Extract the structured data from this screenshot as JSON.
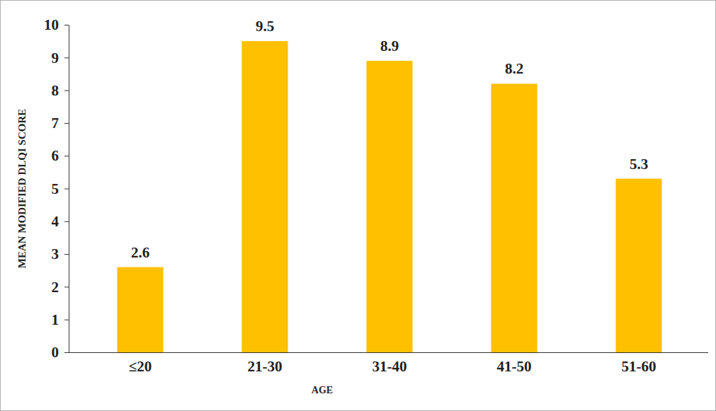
{
  "chart_data": {
    "type": "bar",
    "x_label": "AGE",
    "y_label": "MEAN MODIFIED DLQI SCORE",
    "categories": [
      "≤20",
      "21-30",
      "31-40",
      "41-50",
      "51-60"
    ],
    "values": [
      2.6,
      9.5,
      8.9,
      8.2,
      5.3
    ],
    "value_labels": [
      "2.6",
      "9.5",
      "8.9",
      "8.2",
      "5.3"
    ],
    "color": "#ffc000",
    "ylim": [
      0,
      10
    ],
    "yticks": [
      0,
      1,
      2,
      3,
      4,
      5,
      6,
      7,
      8,
      9,
      10
    ],
    "grid": false,
    "data_labels": true
  }
}
